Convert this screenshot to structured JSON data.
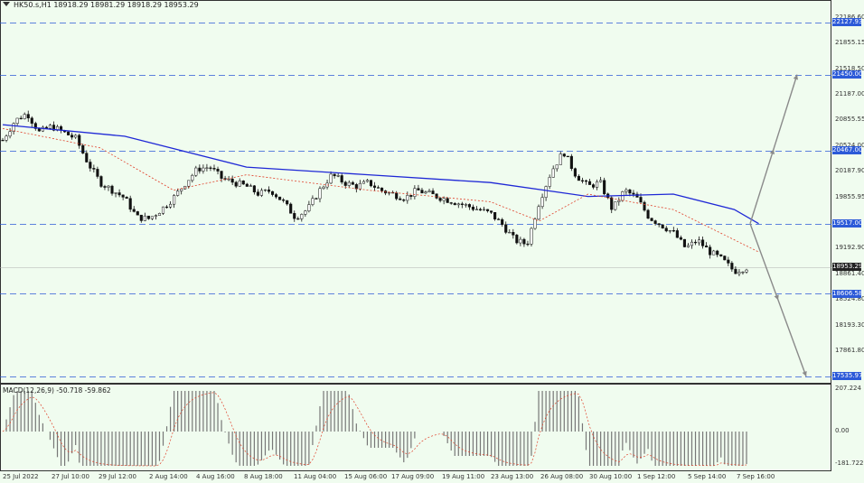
{
  "header": {
    "symbol_info": "HK50.s,H1  18918.29 18981.29 18918.29 18953.29"
  },
  "macd": {
    "label": "MACD(12,26,9) -50.718 -59.862",
    "axis": [
      "207.224",
      "0.00",
      "-181.722"
    ]
  },
  "price_axis": [
    "22186.60",
    "21855.15",
    "21518.50",
    "21187.00",
    "20855.55",
    "20524.00",
    "20187.90",
    "19855.95",
    "19192.90",
    "18861.40",
    "18524.80",
    "18193.30",
    "17861.80"
  ],
  "levels": [
    {
      "label": "22127.93",
      "value": 22127.93
    },
    {
      "label": "21450.00",
      "value": 21450.0
    },
    {
      "label": "20467.00",
      "value": 20467.0
    },
    {
      "label": "19517.00",
      "value": 19517.0
    },
    {
      "label": "18606.58",
      "value": 18606.58
    },
    {
      "label": "17535.97",
      "value": 17535.97
    }
  ],
  "current_price": {
    "label": "18953.29",
    "value": 18953.29
  },
  "time_axis": [
    "25 Jul 2022",
    "27 Jul 10:00",
    "29 Jul 12:00",
    "2 Aug 14:00",
    "4 Aug 16:00",
    "8 Aug 18:00",
    "11 Aug 04:00",
    "15 Aug 06:00",
    "17 Aug 09:00",
    "19 Aug 11:00",
    "23 Aug 13:00",
    "26 Aug 08:00",
    "30 Aug 10:00",
    "1 Sep 12:00",
    "5 Sep 14:00",
    "7 Sep 16:00"
  ],
  "colors": {
    "background": "#f0fcef",
    "level_line": "#2c5ad8",
    "ma_slow": "#1f28d6",
    "ma_fast": "#e0402a",
    "candle": "#111111",
    "arrow": "#8a8a8a"
  },
  "chart_data": {
    "type": "line",
    "price_path": [
      [
        0,
        20600
      ],
      [
        1,
        20850
      ],
      [
        2,
        20950
      ],
      [
        3,
        20700
      ],
      [
        4,
        20780
      ],
      [
        5,
        20700
      ],
      [
        6,
        20620
      ],
      [
        7,
        20300
      ],
      [
        8,
        20050
      ],
      [
        9,
        19950
      ],
      [
        10,
        19850
      ],
      [
        11,
        19600
      ],
      [
        12,
        19580
      ],
      [
        13,
        19700
      ],
      [
        14,
        19850
      ],
      [
        15,
        20050
      ],
      [
        16,
        20230
      ],
      [
        17,
        20250
      ],
      [
        18,
        20100
      ],
      [
        19,
        20050
      ],
      [
        20,
        20000
      ],
      [
        21,
        19900
      ],
      [
        22,
        19950
      ],
      [
        23,
        19800
      ],
      [
        24,
        19600
      ],
      [
        25,
        19700
      ],
      [
        26,
        19950
      ],
      [
        27,
        20150
      ],
      [
        28,
        20050
      ],
      [
        29,
        20000
      ],
      [
        30,
        20050
      ],
      [
        31,
        19950
      ],
      [
        32,
        19900
      ],
      [
        33,
        19850
      ],
      [
        34,
        19950
      ],
      [
        35,
        19900
      ],
      [
        36,
        19850
      ],
      [
        37,
        19800
      ],
      [
        38,
        19750
      ],
      [
        39,
        19700
      ],
      [
        40,
        19650
      ],
      [
        41,
        19500
      ],
      [
        42,
        19300
      ],
      [
        43,
        19250
      ],
      [
        44,
        19800
      ],
      [
        45,
        20200
      ],
      [
        46,
        20450
      ],
      [
        47,
        20150
      ],
      [
        48,
        20000
      ],
      [
        49,
        20050
      ],
      [
        50,
        19700
      ],
      [
        51,
        19950
      ],
      [
        52,
        19850
      ],
      [
        53,
        19600
      ],
      [
        54,
        19500
      ],
      [
        55,
        19400
      ],
      [
        56,
        19200
      ],
      [
        57,
        19300
      ],
      [
        58,
        19150
      ],
      [
        59,
        19050
      ],
      [
        60,
        18900
      ],
      [
        61,
        18950
      ]
    ],
    "ma_slow": [
      [
        0,
        20800
      ],
      [
        10,
        20650
      ],
      [
        20,
        20250
      ],
      [
        30,
        20150
      ],
      [
        40,
        20050
      ],
      [
        48,
        19870
      ],
      [
        55,
        19900
      ],
      [
        60,
        19700
      ],
      [
        62,
        19517
      ]
    ],
    "ma_fast": [
      [
        0,
        20750
      ],
      [
        8,
        20500
      ],
      [
        14,
        19950
      ],
      [
        20,
        20150
      ],
      [
        30,
        19950
      ],
      [
        40,
        19800
      ],
      [
        44,
        19550
      ],
      [
        48,
        19900
      ],
      [
        55,
        19700
      ],
      [
        62,
        19150
      ]
    ],
    "projections": [
      {
        "from": 19517,
        "to": 21450
      },
      {
        "from": 19517,
        "to": 17535.97
      }
    ],
    "ylim": [
      17500,
      22300
    ]
  }
}
